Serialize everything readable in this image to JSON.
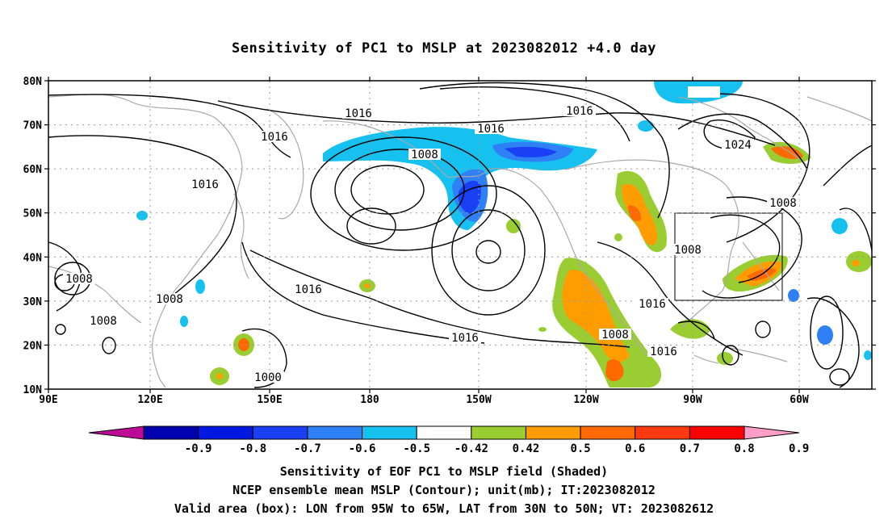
{
  "title": "Sensitivity of PC1 to MSLP at 2023082012 +4.0 day",
  "axes": {
    "lat_labels": [
      "80N",
      "70N",
      "60N",
      "50N",
      "40N",
      "30N",
      "20N",
      "10N"
    ],
    "lon_labels": [
      "90E",
      "120E",
      "150E",
      "180",
      "150W",
      "120W",
      "90W",
      "60W"
    ]
  },
  "contour_labels": [
    "1016",
    "1016",
    "1016",
    "1016",
    "1016",
    "1016",
    "1016",
    "1016",
    "1016",
    "1008",
    "1008",
    "1008",
    "1008",
    "1008",
    "1008",
    "1008",
    "1000",
    "1024"
  ],
  "colorbar": {
    "labels": [
      "-0.9",
      "-0.8",
      "-0.7",
      "-0.6",
      "-0.5",
      "-0.42",
      "0.42",
      "0.5",
      "0.6",
      "0.7",
      "0.8",
      "0.9"
    ],
    "colors": [
      "#bd0b95",
      "#0000b0",
      "#0018e0",
      "#1a40f5",
      "#2f7ff5",
      "#16c0ef",
      "#ffffff",
      "#9acd32",
      "#ff9d00",
      "#ff6a00",
      "#ff3a10",
      "#ff0000",
      "#ff9ec8"
    ]
  },
  "captions": {
    "line1": "Sensitivity of EOF PC1 to MSLP field (Shaded)",
    "line2": "NCEP ensemble mean MSLP (Contour); unit(mb); IT:2023082012",
    "line3": "Valid area (box): LON from 95W to 65W, LAT from 30N to 50N; VT: 2023082612"
  }
}
